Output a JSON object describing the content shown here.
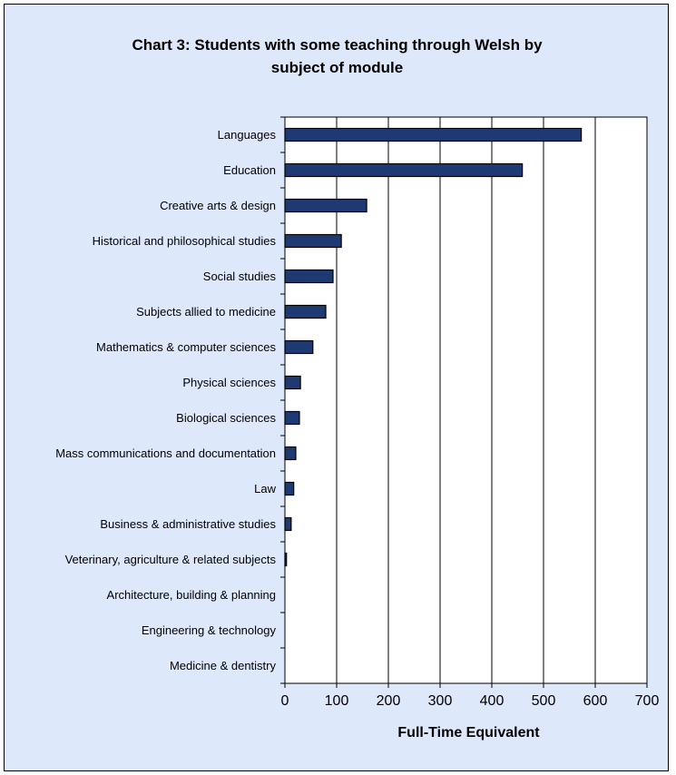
{
  "chart_data": {
    "type": "bar",
    "orientation": "horizontal",
    "title_lines": [
      "Chart 3: Students with some teaching through Welsh by",
      "subject of module"
    ],
    "xlabel": "Full-Time Equivalent",
    "ylabel": "",
    "xlim": [
      0,
      700
    ],
    "xticks": [
      "0",
      "100",
      "200",
      "300",
      "400",
      "500",
      "600",
      "700"
    ],
    "grid": "vertical",
    "legend": "none",
    "categories": [
      "Languages",
      "Education",
      "Creative arts & design",
      "Historical and philosophical studies",
      "Social studies",
      "Subjects allied to medicine",
      "Mathematics & computer sciences",
      "Physical sciences",
      "Biological sciences",
      "Mass communications and documentation",
      "Law",
      "Business & administrative studies",
      "Veterinary, agriculture & related subjects",
      "Architecture, building & planning",
      "Engineering & technology",
      "Medicine & dentistry"
    ],
    "values": [
      573,
      459,
      158,
      109,
      93,
      79,
      54,
      30,
      28,
      21,
      17,
      12,
      3,
      0,
      0,
      0
    ],
    "colors": {
      "bar_fill": "#1f3a73",
      "bar_stroke": "#000000",
      "plot_bg": "#ffffff",
      "frame_bg": "#dde9fa"
    }
  }
}
